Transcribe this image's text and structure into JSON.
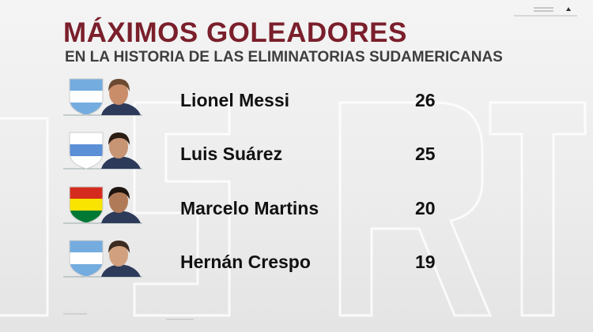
{
  "header": {
    "title": "MÁXIMOS GOLEADORES",
    "subtitle": "EN LA HISTORIA DE LAS ELIMINATORIAS SUDAMERICANAS"
  },
  "table": {
    "rows": [
      {
        "name": "Lionel Messi",
        "goals": 26
      },
      {
        "name": "Luis Suárez",
        "goals": 25
      },
      {
        "name": "Marcelo Martins",
        "goals": 20
      },
      {
        "name": "Hernán Crespo",
        "goals": 19
      }
    ]
  }
}
